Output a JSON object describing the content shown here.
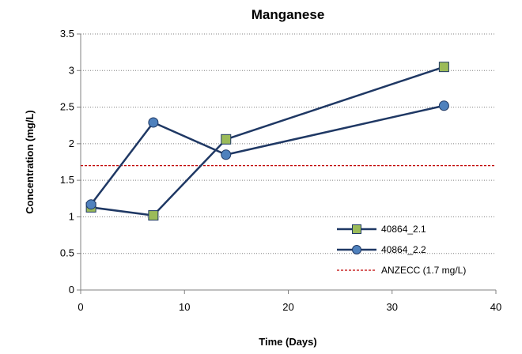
{
  "chart_data": {
    "type": "line",
    "title": "Manganese",
    "xlabel": "Time (Days)",
    "ylabel": "Concentration (mg/L)",
    "xlim": [
      0,
      40
    ],
    "ylim": [
      0,
      3.5
    ],
    "xticks": [
      "0",
      "10",
      "20",
      "30",
      "40"
    ],
    "yticks": [
      "0",
      "0.5",
      "1",
      "1.5",
      "2",
      "2.5",
      "3",
      "3.5"
    ],
    "grid": "horizontal dotted",
    "legend_position": "bottom-right",
    "series": [
      {
        "name": "40864_2.1",
        "marker": "square",
        "line_color": "#1f3864",
        "marker_color": "#9bbb59",
        "points": [
          {
            "x": 1,
            "y": 1.13
          },
          {
            "x": 7,
            "y": 1.02
          },
          {
            "x": 14,
            "y": 2.06
          },
          {
            "x": 35,
            "y": 3.05
          }
        ]
      },
      {
        "name": "40864_2.2",
        "marker": "circle",
        "line_color": "#1f3864",
        "marker_color": "#4f81bd",
        "points": [
          {
            "x": 1,
            "y": 1.17
          },
          {
            "x": 7,
            "y": 2.29
          },
          {
            "x": 14,
            "y": 1.85
          },
          {
            "x": 35,
            "y": 2.52
          }
        ]
      }
    ],
    "reference_lines": [
      {
        "name": "ANZECC (1.7 mg/L)",
        "y": 1.7,
        "color": "#c00000",
        "style": "dashed"
      }
    ]
  }
}
